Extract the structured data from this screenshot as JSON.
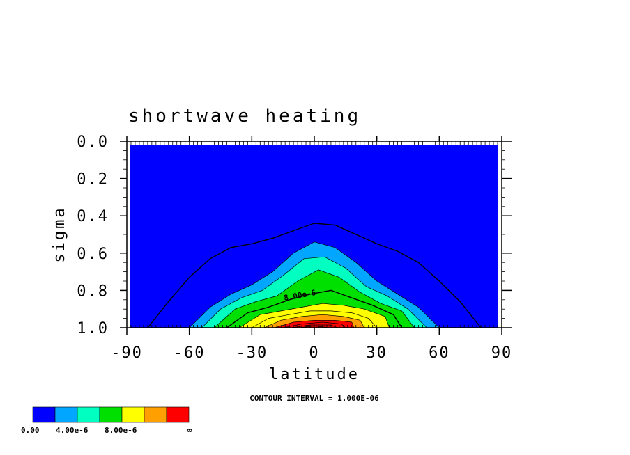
{
  "chart_data": {
    "type": "contour",
    "title": "shortwave heating",
    "xlabel": "latitude",
    "ylabel": "sigma",
    "xlim": [
      -90,
      90
    ],
    "ylim": [
      1.0,
      0.0
    ],
    "x_ticks": [
      "-90",
      "-60",
      "-30",
      "0",
      "30",
      "60",
      "90"
    ],
    "y_ticks": [
      "0.0",
      "0.2",
      "0.4",
      "0.6",
      "0.8",
      "1.0"
    ],
    "contour_label": "8.00e-6",
    "contour_interval_text": "CONTOUR INTERVAL = 1.000E-06",
    "levels": [
      {
        "lat": [
          -80,
          -70,
          -60,
          -50,
          -40,
          -30,
          -20,
          -10,
          0,
          10,
          20,
          30,
          40,
          50,
          60,
          70,
          80
        ],
        "sigma": [
          1.0,
          0.86,
          0.73,
          0.63,
          0.57,
          0.55,
          0.52,
          0.48,
          0.44,
          0.45,
          0.5,
          0.55,
          0.59,
          0.65,
          0.75,
          0.86,
          1.0
        ]
      },
      {
        "lat": [
          -60,
          -50,
          -40,
          -30,
          -20,
          -10,
          0,
          10,
          20,
          30,
          40,
          50,
          60
        ],
        "sigma": [
          1.0,
          0.89,
          0.82,
          0.77,
          0.7,
          0.6,
          0.54,
          0.57,
          0.65,
          0.75,
          0.82,
          0.89,
          1.0
        ]
      },
      {
        "lat": [
          -54,
          -45,
          -35,
          -25,
          -15,
          -5,
          5,
          15,
          25,
          35,
          45,
          54
        ],
        "sigma": [
          1.0,
          0.9,
          0.84,
          0.8,
          0.72,
          0.63,
          0.62,
          0.68,
          0.78,
          0.83,
          0.9,
          1.0
        ]
      },
      {
        "lat": [
          -48,
          -38,
          -28,
          -18,
          -8,
          2,
          12,
          22,
          32,
          42,
          48
        ],
        "sigma": [
          1.0,
          0.9,
          0.86,
          0.83,
          0.75,
          0.69,
          0.73,
          0.81,
          0.87,
          0.91,
          1.0
        ]
      },
      {
        "lat": [
          -42,
          -32,
          -22,
          -12,
          -2,
          8,
          18,
          28,
          38,
          42
        ],
        "sigma": [
          1.0,
          0.92,
          0.89,
          0.85,
          0.82,
          0.8,
          0.84,
          0.88,
          0.93,
          1.0
        ]
      },
      {
        "lat": [
          -36,
          -26,
          -16,
          -6,
          4,
          14,
          24,
          34,
          36
        ],
        "sigma": [
          1.0,
          0.93,
          0.91,
          0.89,
          0.87,
          0.88,
          0.9,
          0.94,
          1.0
        ]
      },
      {
        "lat": [
          -30,
          -22,
          -12,
          -2,
          8,
          18,
          26,
          30
        ],
        "sigma": [
          1.0,
          0.95,
          0.93,
          0.91,
          0.91,
          0.92,
          0.95,
          1.0
        ]
      },
      {
        "lat": [
          -24,
          -16,
          -6,
          4,
          14,
          22,
          24
        ],
        "sigma": [
          1.0,
          0.96,
          0.94,
          0.93,
          0.94,
          0.96,
          1.0
        ]
      },
      {
        "lat": [
          -19,
          -10,
          0,
          10,
          18,
          19
        ],
        "sigma": [
          1.0,
          0.97,
          0.96,
          0.96,
          0.97,
          1.0
        ]
      },
      {
        "lat": [
          -15,
          -6,
          4,
          13,
          15
        ],
        "sigma": [
          1.0,
          0.98,
          0.97,
          0.98,
          1.0
        ]
      },
      {
        "lat": [
          -11,
          -2,
          8,
          11
        ],
        "sigma": [
          1.0,
          0.985,
          0.985,
          1.0
        ]
      },
      {
        "lat": [
          -7,
          0,
          7
        ],
        "sigma": [
          1.0,
          0.99,
          1.0
        ]
      }
    ],
    "level_colors": [
      "#0000ff",
      "#00a6ff",
      "#00ffc0",
      "#00e000",
      "#00e000",
      "#ffff00",
      "#ffff00",
      "#ffa000",
      "#ff0000",
      "#ff0000",
      "#e00000",
      "#c00000"
    ],
    "colorbar": {
      "colors": [
        "#0000ff",
        "#00a6ff",
        "#00ffc0",
        "#00e000",
        "#ffff00",
        "#ffa000",
        "#ff0000"
      ],
      "labels": [
        "0.00",
        "4.00e-6",
        "8.00e-6",
        "∞"
      ]
    }
  }
}
